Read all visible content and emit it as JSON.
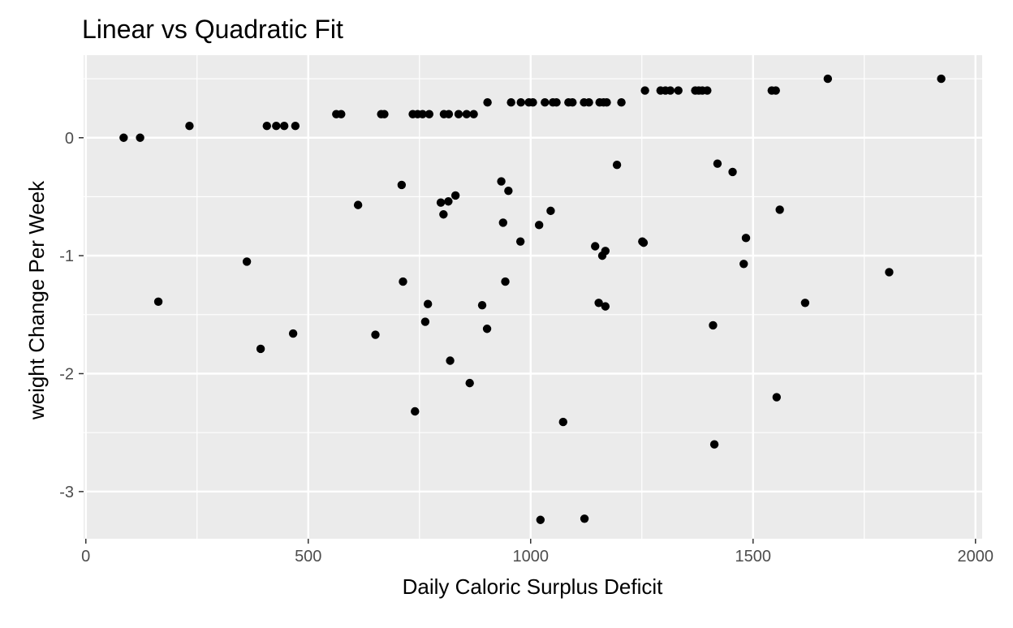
{
  "chart_data": {
    "type": "scatter",
    "title": "Linear vs Quadratic Fit",
    "xlabel": "Daily Caloric Surplus Deficit",
    "ylabel": "weight Change Per Week",
    "xlim": [
      -5,
      2015
    ],
    "ylim": [
      -3.4,
      0.7
    ],
    "x_ticks": [
      0,
      500,
      1000,
      1500,
      2000
    ],
    "x_tick_labels": [
      "0",
      "500",
      "1000",
      "1500",
      "2000"
    ],
    "y_ticks": [
      0,
      -1,
      -2,
      -3
    ],
    "y_tick_labels": [
      "0",
      "-1",
      "-2",
      "-3"
    ],
    "grid": true,
    "colors": {
      "panel": "#ebebeb",
      "grid": "#ffffff",
      "point": "#000000",
      "tick_text": "#4d4d4d"
    },
    "points": [
      {
        "x": 85,
        "y": 0.0
      },
      {
        "x": 122,
        "y": 0.0
      },
      {
        "x": 233,
        "y": 0.1
      },
      {
        "x": 407,
        "y": 0.1
      },
      {
        "x": 428,
        "y": 0.1
      },
      {
        "x": 446,
        "y": 0.1
      },
      {
        "x": 471,
        "y": 0.1
      },
      {
        "x": 563,
        "y": 0.2
      },
      {
        "x": 574,
        "y": 0.2
      },
      {
        "x": 664,
        "y": 0.2
      },
      {
        "x": 671,
        "y": 0.2
      },
      {
        "x": 735,
        "y": 0.2
      },
      {
        "x": 746,
        "y": 0.2
      },
      {
        "x": 757,
        "y": 0.2
      },
      {
        "x": 772,
        "y": 0.2
      },
      {
        "x": 805,
        "y": 0.2
      },
      {
        "x": 816,
        "y": 0.2
      },
      {
        "x": 838,
        "y": 0.2
      },
      {
        "x": 856,
        "y": 0.2
      },
      {
        "x": 872,
        "y": 0.2
      },
      {
        "x": 903,
        "y": 0.3
      },
      {
        "x": 956,
        "y": 0.3
      },
      {
        "x": 978,
        "y": 0.3
      },
      {
        "x": 996,
        "y": 0.3
      },
      {
        "x": 1005,
        "y": 0.3
      },
      {
        "x": 1032,
        "y": 0.3
      },
      {
        "x": 1050,
        "y": 0.3
      },
      {
        "x": 1058,
        "y": 0.3
      },
      {
        "x": 1085,
        "y": 0.3
      },
      {
        "x": 1094,
        "y": 0.3
      },
      {
        "x": 1120,
        "y": 0.3
      },
      {
        "x": 1131,
        "y": 0.3
      },
      {
        "x": 1155,
        "y": 0.3
      },
      {
        "x": 1164,
        "y": 0.3
      },
      {
        "x": 1171,
        "y": 0.3
      },
      {
        "x": 1204,
        "y": 0.3
      },
      {
        "x": 1257,
        "y": 0.4
      },
      {
        "x": 1292,
        "y": 0.4
      },
      {
        "x": 1303,
        "y": 0.4
      },
      {
        "x": 1314,
        "y": 0.4
      },
      {
        "x": 1332,
        "y": 0.4
      },
      {
        "x": 1370,
        "y": 0.4
      },
      {
        "x": 1378,
        "y": 0.4
      },
      {
        "x": 1386,
        "y": 0.4
      },
      {
        "x": 1397,
        "y": 0.4
      },
      {
        "x": 1542,
        "y": 0.4
      },
      {
        "x": 1551,
        "y": 0.4
      },
      {
        "x": 1668,
        "y": 0.5
      },
      {
        "x": 1923,
        "y": 0.5
      },
      {
        "x": 163,
        "y": -1.39
      },
      {
        "x": 362,
        "y": -1.05
      },
      {
        "x": 393,
        "y": -1.79
      },
      {
        "x": 466,
        "y": -1.66
      },
      {
        "x": 612,
        "y": -0.57
      },
      {
        "x": 651,
        "y": -1.67
      },
      {
        "x": 710,
        "y": -0.4
      },
      {
        "x": 713,
        "y": -1.22
      },
      {
        "x": 740,
        "y": -2.32
      },
      {
        "x": 763,
        "y": -1.56
      },
      {
        "x": 769,
        "y": -1.41
      },
      {
        "x": 798,
        "y": -0.55
      },
      {
        "x": 804,
        "y": -0.65
      },
      {
        "x": 815,
        "y": -0.54
      },
      {
        "x": 819,
        "y": -1.89
      },
      {
        "x": 831,
        "y": -0.49
      },
      {
        "x": 863,
        "y": -2.08
      },
      {
        "x": 891,
        "y": -1.42
      },
      {
        "x": 902,
        "y": -1.62
      },
      {
        "x": 934,
        "y": -0.37
      },
      {
        "x": 938,
        "y": -0.72
      },
      {
        "x": 943,
        "y": -1.22
      },
      {
        "x": 950,
        "y": -0.45
      },
      {
        "x": 977,
        "y": -0.88
      },
      {
        "x": 1019,
        "y": -0.74
      },
      {
        "x": 1022,
        "y": -3.24
      },
      {
        "x": 1045,
        "y": -0.62
      },
      {
        "x": 1073,
        "y": -2.41
      },
      {
        "x": 1121,
        "y": -3.23
      },
      {
        "x": 1145,
        "y": -0.92
      },
      {
        "x": 1153,
        "y": -1.4
      },
      {
        "x": 1161,
        "y": -1.0
      },
      {
        "x": 1168,
        "y": -0.96
      },
      {
        "x": 1168,
        "y": -1.43
      },
      {
        "x": 1194,
        "y": -0.23
      },
      {
        "x": 1251,
        "y": -0.88
      },
      {
        "x": 1254,
        "y": -0.89
      },
      {
        "x": 1410,
        "y": -1.59
      },
      {
        "x": 1413,
        "y": -2.6
      },
      {
        "x": 1420,
        "y": -0.22
      },
      {
        "x": 1454,
        "y": -0.29
      },
      {
        "x": 1479,
        "y": -1.07
      },
      {
        "x": 1484,
        "y": -0.85
      },
      {
        "x": 1553,
        "y": -2.2
      },
      {
        "x": 1560,
        "y": -0.61
      },
      {
        "x": 1617,
        "y": -1.4
      },
      {
        "x": 1806,
        "y": -1.14
      }
    ]
  }
}
